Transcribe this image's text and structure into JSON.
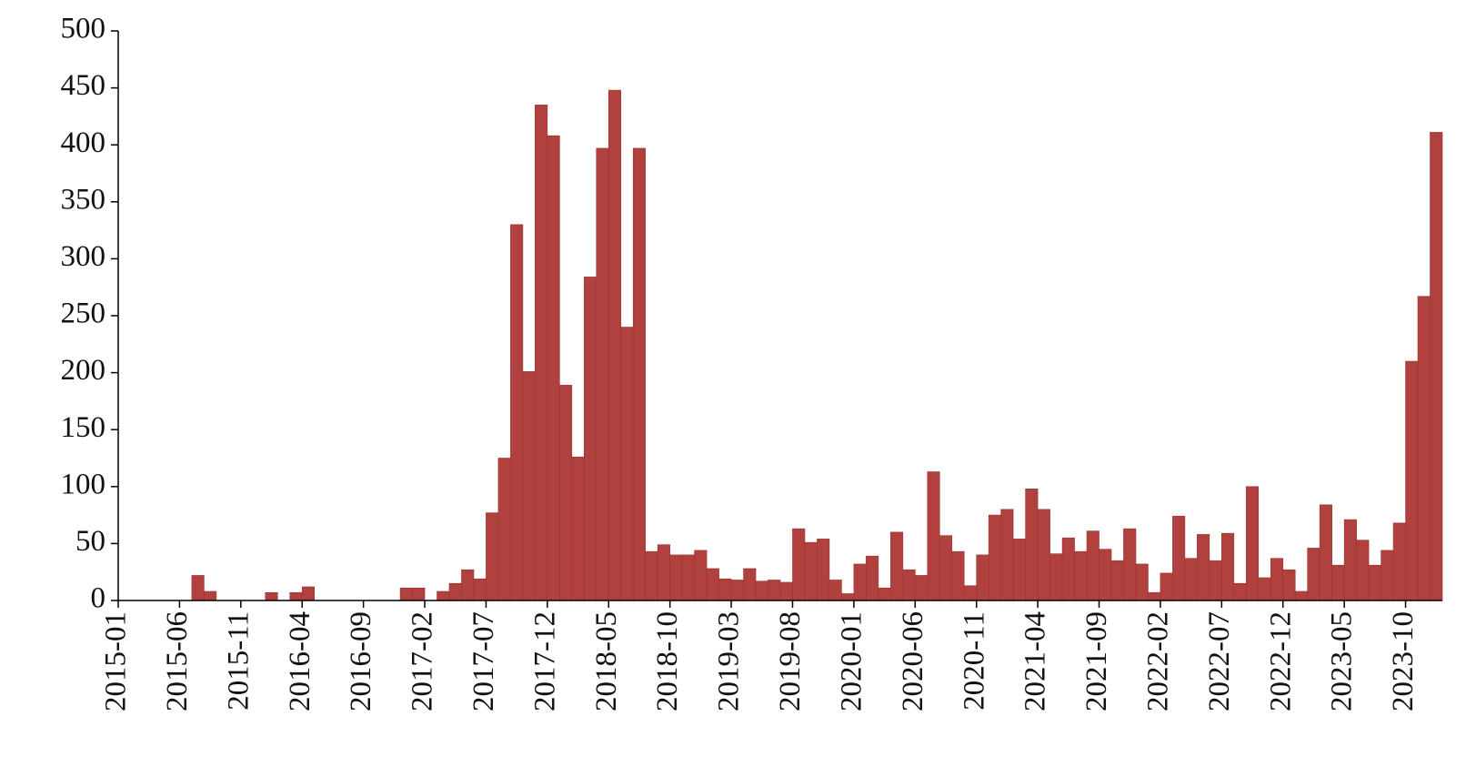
{
  "chart_data": {
    "type": "bar",
    "categories": [
      "2015-01",
      null,
      null,
      null,
      null,
      "2015-06",
      null,
      null,
      null,
      null,
      "2015-11",
      null,
      null,
      null,
      null,
      "2016-04",
      null,
      null,
      null,
      null,
      "2016-09",
      null,
      null,
      null,
      null,
      "2017-02",
      null,
      null,
      null,
      null,
      "2017-07",
      null,
      null,
      null,
      null,
      "2017-12",
      null,
      null,
      null,
      null,
      "2018-05",
      null,
      null,
      null,
      null,
      "2018-10",
      null,
      null,
      null,
      null,
      "2019-03",
      null,
      null,
      null,
      null,
      "2019-08",
      null,
      null,
      null,
      null,
      "2020-01",
      null,
      null,
      null,
      null,
      "2020-06",
      null,
      null,
      null,
      null,
      "2020-11",
      null,
      null,
      null,
      null,
      "2021-04",
      null,
      null,
      null,
      null,
      "2021-09",
      null,
      null,
      null,
      null,
      "2022-02",
      null,
      null,
      null,
      null,
      "2022-07",
      null,
      null,
      null,
      null,
      "2022-12",
      null,
      null,
      null,
      null,
      "2023-05",
      null,
      null,
      null,
      null,
      "2023-10",
      null,
      null
    ],
    "values": [
      0,
      0,
      0,
      0,
      0,
      0,
      22,
      8,
      0,
      0,
      0,
      0,
      7,
      0,
      7,
      12,
      0,
      0,
      0,
      0,
      0,
      0,
      0,
      11,
      11,
      0,
      8,
      15,
      27,
      19,
      77,
      125,
      330,
      201,
      435,
      408,
      189,
      126,
      284,
      397,
      448,
      240,
      397,
      43,
      49,
      40,
      40,
      44,
      28,
      19,
      18,
      28,
      17,
      18,
      16,
      63,
      51,
      54,
      18,
      6,
      32,
      39,
      11,
      60,
      27,
      22,
      113,
      57,
      43,
      13,
      40,
      75,
      80,
      54,
      98,
      80,
      41,
      55,
      43,
      61,
      45,
      35,
      63,
      32,
      7,
      24,
      74,
      37,
      58,
      35,
      59,
      15,
      100,
      20,
      37,
      27,
      8,
      46,
      84,
      31,
      71,
      53,
      31,
      44,
      68,
      210,
      267,
      411
    ],
    "color": "#b0413e",
    "ylim": [
      0,
      500
    ],
    "yticks": [
      0,
      50,
      100,
      150,
      200,
      250,
      300,
      350,
      400,
      450,
      500
    ],
    "grid": false
  }
}
